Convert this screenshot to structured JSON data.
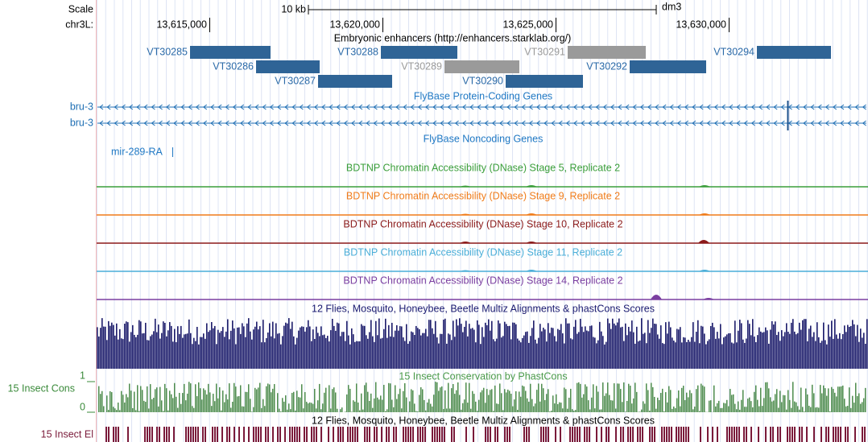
{
  "header": {
    "scale_label": "Scale",
    "scale_text": "10 kb",
    "assembly": "dm3",
    "chrom": "chr3L:"
  },
  "ruler": {
    "ticks": [
      "13,615,000",
      "13,620,000",
      "13,625,000",
      "13,630,000"
    ]
  },
  "enhancers": {
    "title": "Embryonic enhancers (http://enhancers.starklab.org/)",
    "items": [
      "VT30285",
      "VT30286",
      "VT30287",
      "VT30288",
      "VT30289",
      "VT30290",
      "VT30291",
      "VT30292",
      "VT30294"
    ]
  },
  "coding": {
    "title": "FlyBase Protein-Coding Genes",
    "genes": [
      "bru-3",
      "bru-3"
    ]
  },
  "noncoding": {
    "title": "FlyBase Noncoding Genes",
    "genes": [
      "mir-289-RA"
    ]
  },
  "dnase": [
    "BDTNP Chromatin Accessibility (DNase) Stage 5, Replicate 2",
    "BDTNP Chromatin Accessibility (DNase) Stage 9, Replicate 2",
    "BDTNP Chromatin Accessibility (DNase) Stage 10, Replicate 2",
    "BDTNP Chromatin Accessibility (DNase) Stage 11, Replicate 2",
    "BDTNP Chromatin Accessibility (DNase) Stage 14, Replicate 2"
  ],
  "multiz": {
    "title": "12 Flies, Mosquito, Honeybee, Beetle Multiz Alignments & phastCons Scores"
  },
  "phastcons": {
    "title": "15 Insect Conservation by PhastCons",
    "label": "15 Insect Cons",
    "max": "1",
    "min": "0"
  },
  "elements": {
    "title": "12 Flies, Mosquito, Honeybee, Beetle Multiz Alignments & phastCons Scores",
    "label": "15 Insect El"
  }
}
